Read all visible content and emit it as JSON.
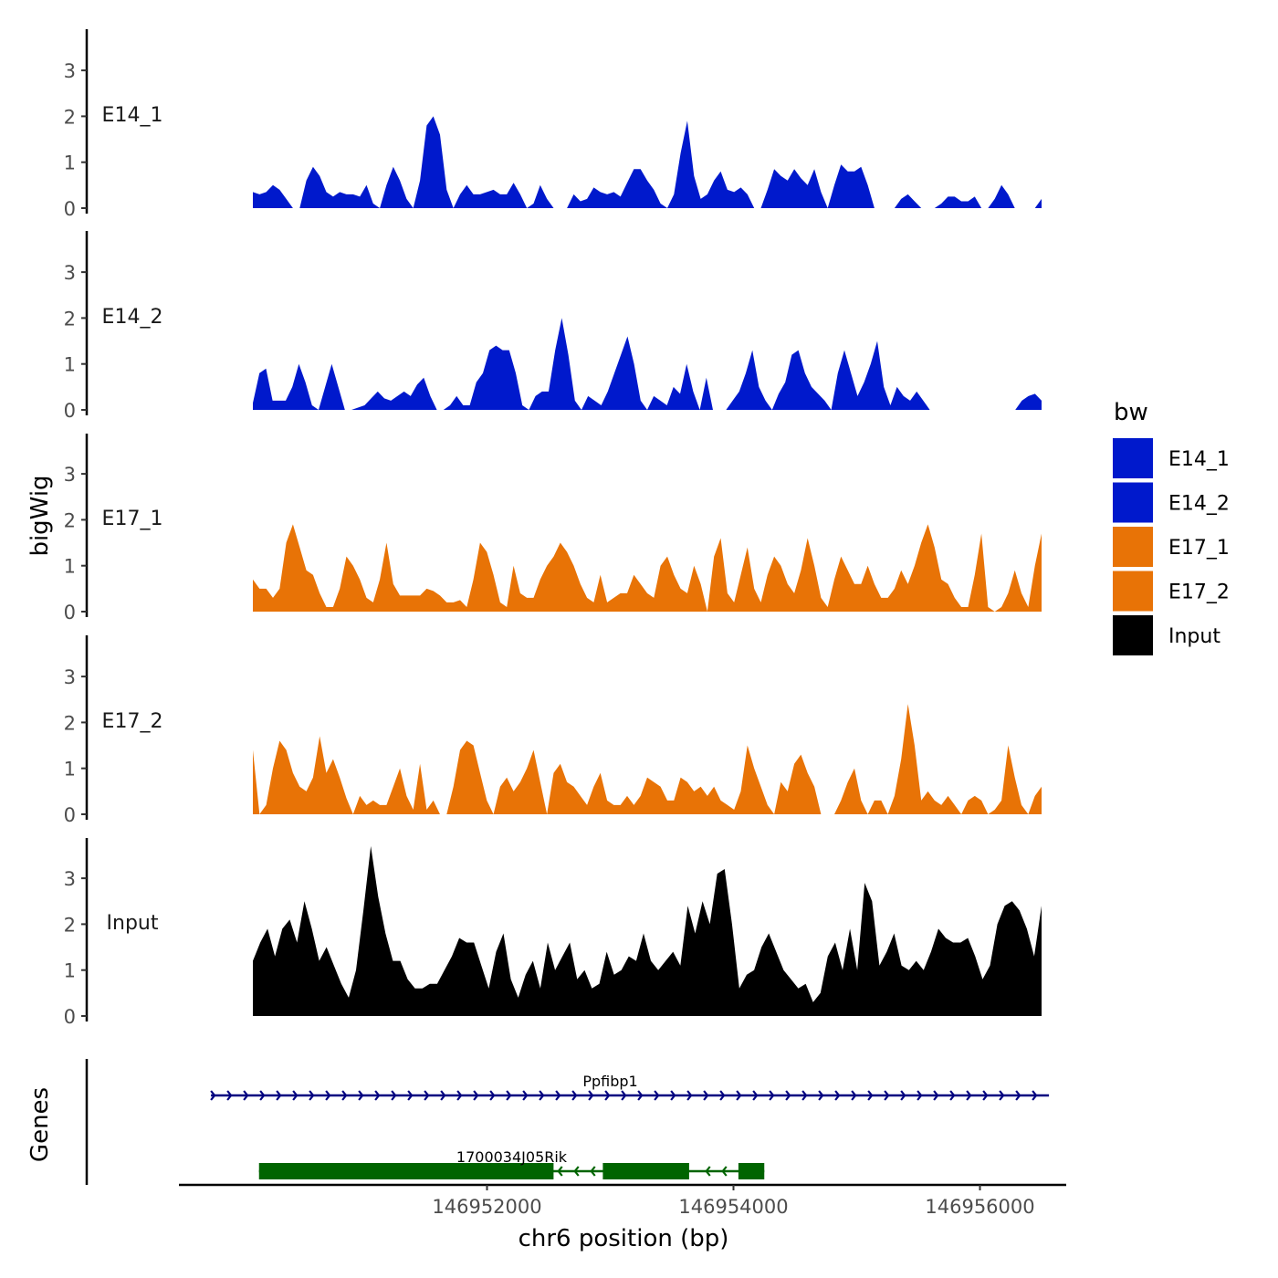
{
  "chart_data": {
    "type": "area",
    "y_axis_title": "bigWig",
    "x_axis_title": "chr6 position (bp)",
    "genes_axis_title": "Genes",
    "xlim": [
      146949500,
      146956700
    ],
    "data_start": 146950100,
    "data_end": 146956500,
    "x_ticks": [
      146952000,
      146954000,
      146956000
    ],
    "x_tick_labels": [
      "146952000",
      "146954000",
      "146956000"
    ],
    "ylim": [
      0,
      3.9
    ],
    "y_ticks": [
      0,
      1,
      2,
      3
    ],
    "y_tick_labels": [
      "0",
      "1",
      "2",
      "3"
    ],
    "legend_title": "bw",
    "legend": [
      {
        "label": "E14_1",
        "color": "#0019CC"
      },
      {
        "label": "E14_2",
        "color": "#0019CC"
      },
      {
        "label": "E17_1",
        "color": "#E87306"
      },
      {
        "label": "E17_2",
        "color": "#E87306"
      },
      {
        "label": "Input",
        "color": "#000000"
      }
    ],
    "series": [
      {
        "name": "E14_1",
        "color": "#0019CC",
        "values": [
          0.35,
          0.3,
          0.35,
          0.5,
          0.4,
          0.2,
          0.0,
          0.0,
          0.6,
          0.9,
          0.7,
          0.35,
          0.25,
          0.35,
          0.3,
          0.3,
          0.25,
          0.5,
          0.1,
          0.0,
          0.5,
          0.9,
          0.6,
          0.2,
          0.0,
          0.6,
          1.8,
          2.0,
          1.6,
          0.4,
          0.0,
          0.3,
          0.5,
          0.3,
          0.3,
          0.35,
          0.4,
          0.3,
          0.3,
          0.55,
          0.3,
          0.0,
          0.1,
          0.5,
          0.2,
          0.0,
          0.0,
          0.0,
          0.3,
          0.15,
          0.2,
          0.45,
          0.35,
          0.3,
          0.35,
          0.25,
          0.55,
          0.85,
          0.85,
          0.6,
          0.4,
          0.1,
          0.0,
          0.3,
          1.2,
          1.9,
          0.7,
          0.2,
          0.3,
          0.6,
          0.8,
          0.4,
          0.35,
          0.45,
          0.3,
          0.0,
          0.0,
          0.4,
          0.85,
          0.7,
          0.6,
          0.85,
          0.65,
          0.5,
          0.85,
          0.35,
          0.0,
          0.5,
          0.95,
          0.8,
          0.8,
          0.9,
          0.5,
          0.0,
          0.0,
          0.0,
          0.0,
          0.2,
          0.3,
          0.15,
          0.0,
          0.0,
          0.0,
          0.1,
          0.25,
          0.25,
          0.15,
          0.15,
          0.25,
          0.0,
          0.0,
          0.2,
          0.5,
          0.3,
          0.0,
          0.0,
          0.0,
          0.0,
          0.2
        ]
      },
      {
        "name": "E14_2",
        "color": "#0019CC",
        "values": [
          0.15,
          0.8,
          0.9,
          0.2,
          0.2,
          0.2,
          0.5,
          1.0,
          0.6,
          0.1,
          0.0,
          0.5,
          1.0,
          0.5,
          0.0,
          0.0,
          0.05,
          0.1,
          0.25,
          0.4,
          0.25,
          0.2,
          0.3,
          0.4,
          0.3,
          0.55,
          0.7,
          0.3,
          0.0,
          0.0,
          0.1,
          0.3,
          0.1,
          0.1,
          0.6,
          0.8,
          1.3,
          1.4,
          1.3,
          1.3,
          0.8,
          0.1,
          0.0,
          0.3,
          0.4,
          0.4,
          1.3,
          2.0,
          1.2,
          0.2,
          0.0,
          0.3,
          0.2,
          0.1,
          0.4,
          0.8,
          1.2,
          1.6,
          1.0,
          0.2,
          0.0,
          0.3,
          0.2,
          0.1,
          0.5,
          0.35,
          1.0,
          0.4,
          0.0,
          0.7,
          0.0,
          0.0,
          0.0,
          0.2,
          0.4,
          0.8,
          1.3,
          0.5,
          0.2,
          0.0,
          0.35,
          0.6,
          1.2,
          1.3,
          0.8,
          0.5,
          0.35,
          0.2,
          0.0,
          0.8,
          1.3,
          0.8,
          0.3,
          0.6,
          1.0,
          1.5,
          0.5,
          0.1,
          0.5,
          0.3,
          0.2,
          0.4,
          0.2,
          0.0,
          0.0,
          0.0,
          0.0,
          0.0,
          0.0,
          0.0,
          0.0,
          0.0,
          0.0,
          0.0,
          0.0,
          0.0,
          0.0,
          0.2,
          0.3,
          0.35,
          0.2
        ]
      },
      {
        "name": "E17_1",
        "color": "#E87306",
        "values": [
          0.7,
          0.5,
          0.5,
          0.3,
          0.5,
          1.5,
          1.9,
          1.4,
          0.9,
          0.8,
          0.4,
          0.1,
          0.1,
          0.5,
          1.2,
          1.0,
          0.7,
          0.3,
          0.2,
          0.7,
          1.5,
          0.6,
          0.35,
          0.35,
          0.35,
          0.35,
          0.5,
          0.45,
          0.35,
          0.2,
          0.2,
          0.25,
          0.1,
          0.7,
          1.5,
          1.3,
          0.8,
          0.2,
          0.1,
          1.0,
          0.4,
          0.3,
          0.3,
          0.7,
          1.0,
          1.2,
          1.5,
          1.3,
          1.0,
          0.6,
          0.3,
          0.2,
          0.8,
          0.2,
          0.3,
          0.4,
          0.4,
          0.8,
          0.6,
          0.4,
          0.3,
          1.0,
          1.2,
          0.8,
          0.5,
          0.4,
          1.0,
          0.6,
          0.0,
          1.2,
          1.6,
          0.4,
          0.2,
          0.8,
          1.4,
          0.5,
          0.2,
          0.8,
          1.2,
          1.0,
          0.6,
          0.4,
          0.9,
          1.6,
          1.0,
          0.3,
          0.1,
          0.7,
          1.2,
          0.9,
          0.6,
          0.6,
          1.0,
          0.6,
          0.3,
          0.3,
          0.5,
          0.9,
          0.6,
          1.0,
          1.5,
          1.9,
          1.4,
          0.7,
          0.6,
          0.3,
          0.1,
          0.1,
          0.8,
          1.7,
          0.1,
          0.0,
          0.1,
          0.4,
          0.9,
          0.4,
          0.1,
          1.0,
          1.7
        ]
      },
      {
        "name": "E17_2",
        "color": "#E87306",
        "values": [
          1.4,
          0.0,
          0.2,
          1.0,
          1.6,
          1.4,
          0.9,
          0.6,
          0.5,
          0.8,
          1.7,
          0.9,
          1.2,
          0.8,
          0.35,
          0.0,
          0.4,
          0.2,
          0.3,
          0.2,
          0.2,
          0.6,
          1.0,
          0.4,
          0.1,
          1.1,
          0.1,
          0.3,
          0.0,
          0.0,
          0.6,
          1.4,
          1.6,
          1.5,
          0.9,
          0.3,
          0.0,
          0.6,
          0.8,
          0.5,
          0.7,
          1.0,
          1.4,
          0.7,
          0.0,
          0.9,
          1.1,
          0.7,
          0.6,
          0.4,
          0.2,
          0.6,
          0.9,
          0.3,
          0.2,
          0.2,
          0.4,
          0.2,
          0.4,
          0.8,
          0.7,
          0.6,
          0.3,
          0.3,
          0.8,
          0.7,
          0.5,
          0.6,
          0.4,
          0.6,
          0.3,
          0.2,
          0.1,
          0.5,
          1.5,
          1.0,
          0.6,
          0.2,
          0.0,
          0.7,
          0.5,
          1.1,
          1.3,
          0.9,
          0.6,
          0.0,
          0.0,
          0.0,
          0.3,
          0.7,
          1.0,
          0.3,
          0.0,
          0.3,
          0.3,
          0.0,
          0.4,
          1.2,
          2.4,
          1.5,
          0.3,
          0.5,
          0.3,
          0.2,
          0.4,
          0.2,
          0.0,
          0.3,
          0.4,
          0.3,
          0.0,
          0.1,
          0.3,
          1.5,
          0.8,
          0.2,
          0.0,
          0.4,
          0.6
        ]
      },
      {
        "name": "Input",
        "color": "#000000",
        "values": [
          1.2,
          1.6,
          1.9,
          1.3,
          1.9,
          2.1,
          1.6,
          2.5,
          1.9,
          1.2,
          1.5,
          1.1,
          0.7,
          0.4,
          1.0,
          2.3,
          3.7,
          2.6,
          1.8,
          1.2,
          1.2,
          0.8,
          0.6,
          0.6,
          0.7,
          0.7,
          1.0,
          1.3,
          1.7,
          1.6,
          1.6,
          1.1,
          0.6,
          1.4,
          1.8,
          0.8,
          0.4,
          0.9,
          1.2,
          0.6,
          1.6,
          1.0,
          1.3,
          1.6,
          0.8,
          1.0,
          0.6,
          0.7,
          1.4,
          0.9,
          1.0,
          1.3,
          1.2,
          1.8,
          1.2,
          1.0,
          1.2,
          1.4,
          1.1,
          2.4,
          1.8,
          2.5,
          2.0,
          3.1,
          3.2,
          2.0,
          0.6,
          0.9,
          1.0,
          1.5,
          1.8,
          1.4,
          1.0,
          0.8,
          0.6,
          0.7,
          0.3,
          0.5,
          1.3,
          1.6,
          1.0,
          1.9,
          1.0,
          2.9,
          2.5,
          1.1,
          1.4,
          1.8,
          1.1,
          1.0,
          1.2,
          1.0,
          1.4,
          1.9,
          1.7,
          1.6,
          1.6,
          1.7,
          1.3,
          0.8,
          1.1,
          2.0,
          2.4,
          2.5,
          2.3,
          1.9,
          1.3,
          2.4
        ]
      }
    ],
    "genes": [
      {
        "name": "Ppfibp1",
        "start": 146949760,
        "end": 146956560,
        "strand": "+",
        "color": "#000080",
        "label_x": 146953000
      },
      {
        "name": "1700034J05Rik",
        "start": 146950150,
        "end": 146954250,
        "strand": "-",
        "color": "#006400",
        "label_x": 146952200,
        "exons": [
          [
            146950150,
            146952540
          ],
          [
            146952940,
            146953640
          ],
          [
            146954040,
            146954250
          ]
        ]
      }
    ]
  }
}
